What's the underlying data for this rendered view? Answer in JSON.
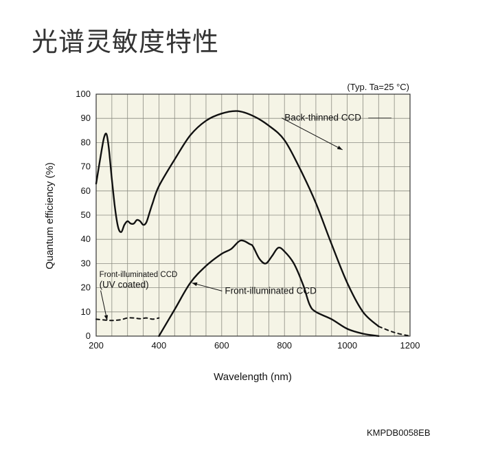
{
  "page": {
    "title": "光谱灵敏度特性",
    "code": "KMPDB0058EB"
  },
  "chart_data": {
    "type": "line",
    "note": "(Typ. Ta=25 °C)",
    "xlabel": "Wavelength (nm)",
    "ylabel": "Quantum efficiency (%)",
    "xlim": [
      200,
      1200
    ],
    "ylim": [
      0,
      100
    ],
    "xticks": [
      200,
      400,
      600,
      800,
      1000,
      1200
    ],
    "yticks": [
      0,
      10,
      20,
      30,
      40,
      50,
      60,
      70,
      80,
      90,
      100
    ],
    "grid": true,
    "plot_background": "#f5f4e6",
    "line_color": "#111111",
    "series": [
      {
        "name": "Back-thinned CCD",
        "style": "solid",
        "x": [
          200,
          215,
          225,
          233,
          240,
          250,
          260,
          270,
          280,
          290,
          300,
          310,
          320,
          330,
          340,
          350,
          360,
          370,
          380,
          400,
          450,
          500,
          550,
          600,
          650,
          700,
          750,
          800,
          850,
          900,
          950,
          1000,
          1050,
          1100
        ],
        "y": [
          63,
          75,
          82,
          83.5,
          78,
          65,
          53,
          45,
          43,
          46,
          47.5,
          46.5,
          46.5,
          48,
          47.5,
          46,
          47,
          51,
          55,
          62,
          73,
          83,
          89,
          92,
          93,
          91,
          87,
          81,
          69,
          55,
          38,
          22,
          10,
          4
        ]
      },
      {
        "name": "Back-thinned CCD",
        "style": "dashed",
        "x": [
          1100,
          1150,
          1200
        ],
        "y": [
          4,
          1.5,
          0
        ]
      },
      {
        "name": "Front-illuminated CCD",
        "style": "solid",
        "x": [
          400,
          450,
          500,
          550,
          600,
          630,
          660,
          690,
          700,
          720,
          740,
          760,
          780,
          800,
          830,
          860,
          880,
          900,
          950,
          1000,
          1050,
          1100
        ],
        "y": [
          0,
          11,
          22,
          29,
          34,
          36,
          39.5,
          38,
          37,
          32,
          30,
          33,
          36.5,
          35,
          30,
          21,
          13,
          10,
          7,
          3,
          1,
          0
        ]
      },
      {
        "name": "Front-illuminated CCD (UV coated)",
        "style": "dashed",
        "x": [
          200,
          240,
          260,
          280,
          300,
          320,
          340,
          360,
          380,
          400
        ],
        "y": [
          7,
          6.5,
          6.5,
          6.8,
          7.5,
          7.5,
          7.2,
          7.5,
          7,
          7.5
        ]
      }
    ],
    "annotations": [
      {
        "text": "Back-thinned CCD",
        "x": 800,
        "y": 89,
        "arrow_to": [
          985,
          77
        ]
      },
      {
        "text": "Front-illuminated CCD",
        "x": 610,
        "y": 17.5,
        "arrow_to": [
          505,
          22
        ]
      },
      {
        "text": "Front-illuminated CCD",
        "x": 210,
        "y": 24.5,
        "arrow_to": null
      },
      {
        "text": "(UV coated)",
        "x": 210,
        "y": 20,
        "arrow_to": [
          235,
          6.5
        ]
      }
    ]
  }
}
